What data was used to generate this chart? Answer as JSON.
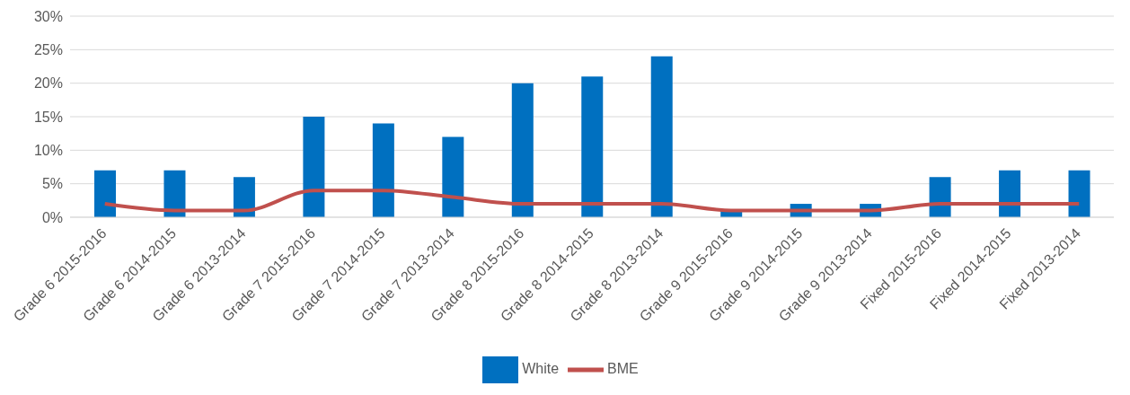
{
  "chart_data": {
    "type": "bar",
    "categories": [
      "Grade 6 2015-2016",
      "Grade 6 2014-2015",
      "Grade 6 2013-2014",
      "Grade 7 2015-2016",
      "Grade 7 2014-2015",
      "Grade 7 2013-2014",
      "Grade 8 2015-2016",
      "Grade 8 2014-2015",
      "Grade 8 2013-2014",
      "Grade 9 2015-2016",
      "Grade 9 2014-2015",
      "Grade 9 2013-2014",
      "Fixed 2015-2016",
      "Fixed 2014-2015",
      "Fixed 2013-2014"
    ],
    "series": [
      {
        "name": "White",
        "color": "#0070c0",
        "values": [
          7,
          7,
          6,
          15,
          14,
          12,
          20,
          21,
          24,
          1,
          2,
          2,
          6,
          7,
          7
        ]
      },
      {
        "name": "BME",
        "type": "line",
        "color": "#c0504d",
        "values": [
          2,
          1,
          1,
          4,
          4,
          3,
          2,
          2,
          2,
          1,
          1,
          1,
          2,
          2,
          2
        ]
      }
    ],
    "ylim": [
      0,
      30
    ],
    "yticks": [
      {
        "value": 0,
        "label": "0%"
      },
      {
        "value": 5,
        "label": "5%"
      },
      {
        "value": 10,
        "label": "10%"
      },
      {
        "value": 15,
        "label": "15%"
      },
      {
        "value": 20,
        "label": "20%"
      },
      {
        "value": 25,
        "label": "25%"
      },
      {
        "value": 30,
        "label": "30%"
      }
    ],
    "grid": "y",
    "legend": "bottom",
    "marker": "none"
  }
}
